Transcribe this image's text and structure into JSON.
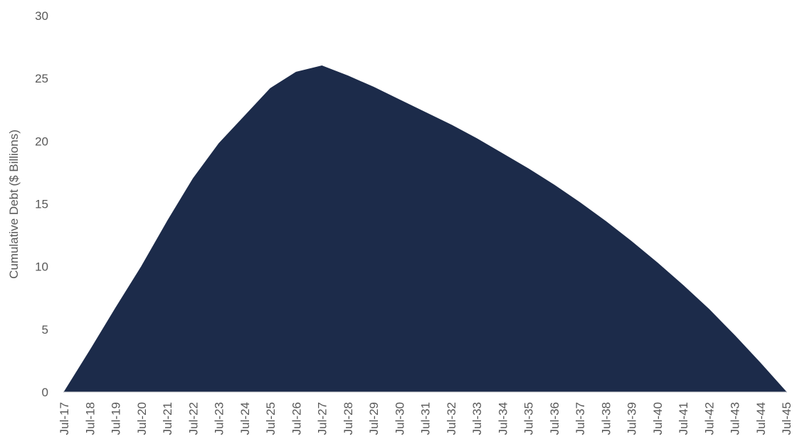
{
  "chart_data": {
    "type": "area",
    "title": "",
    "xlabel": "",
    "ylabel": "Cumulative Debt ($ Billions)",
    "ylim": [
      0,
      30
    ],
    "y_ticks": [
      "0",
      "5",
      "10",
      "15",
      "20",
      "25",
      "30"
    ],
    "grid": false,
    "legend": "none",
    "color": "#1c2b4a",
    "categories": [
      "Jul-17",
      "Jul-18",
      "Jul-19",
      "Jul-20",
      "Jul-21",
      "Jul-22",
      "Jul-23",
      "Jul-24",
      "Jul-25",
      "Jul-26",
      "Jul-27",
      "Jul-28",
      "Jul-29",
      "Jul-30",
      "Jul-31",
      "Jul-32",
      "Jul-33",
      "Jul-34",
      "Jul-35",
      "Jul-36",
      "Jul-37",
      "Jul-38",
      "Jul-39",
      "Jul-40",
      "Jul-41",
      "Jul-42",
      "Jul-43",
      "Jul-44",
      "Jul-45"
    ],
    "series": [
      {
        "values": [
          0,
          3.3,
          6.7,
          10.0,
          13.6,
          17.0,
          19.8,
          22.0,
          24.2,
          25.5,
          26.0,
          25.2,
          24.3,
          23.3,
          22.3,
          21.3,
          20.2,
          19.0,
          17.8,
          16.5,
          15.1,
          13.6,
          12.0,
          10.3,
          8.5,
          6.6,
          4.5,
          2.3,
          0
        ]
      }
    ]
  }
}
